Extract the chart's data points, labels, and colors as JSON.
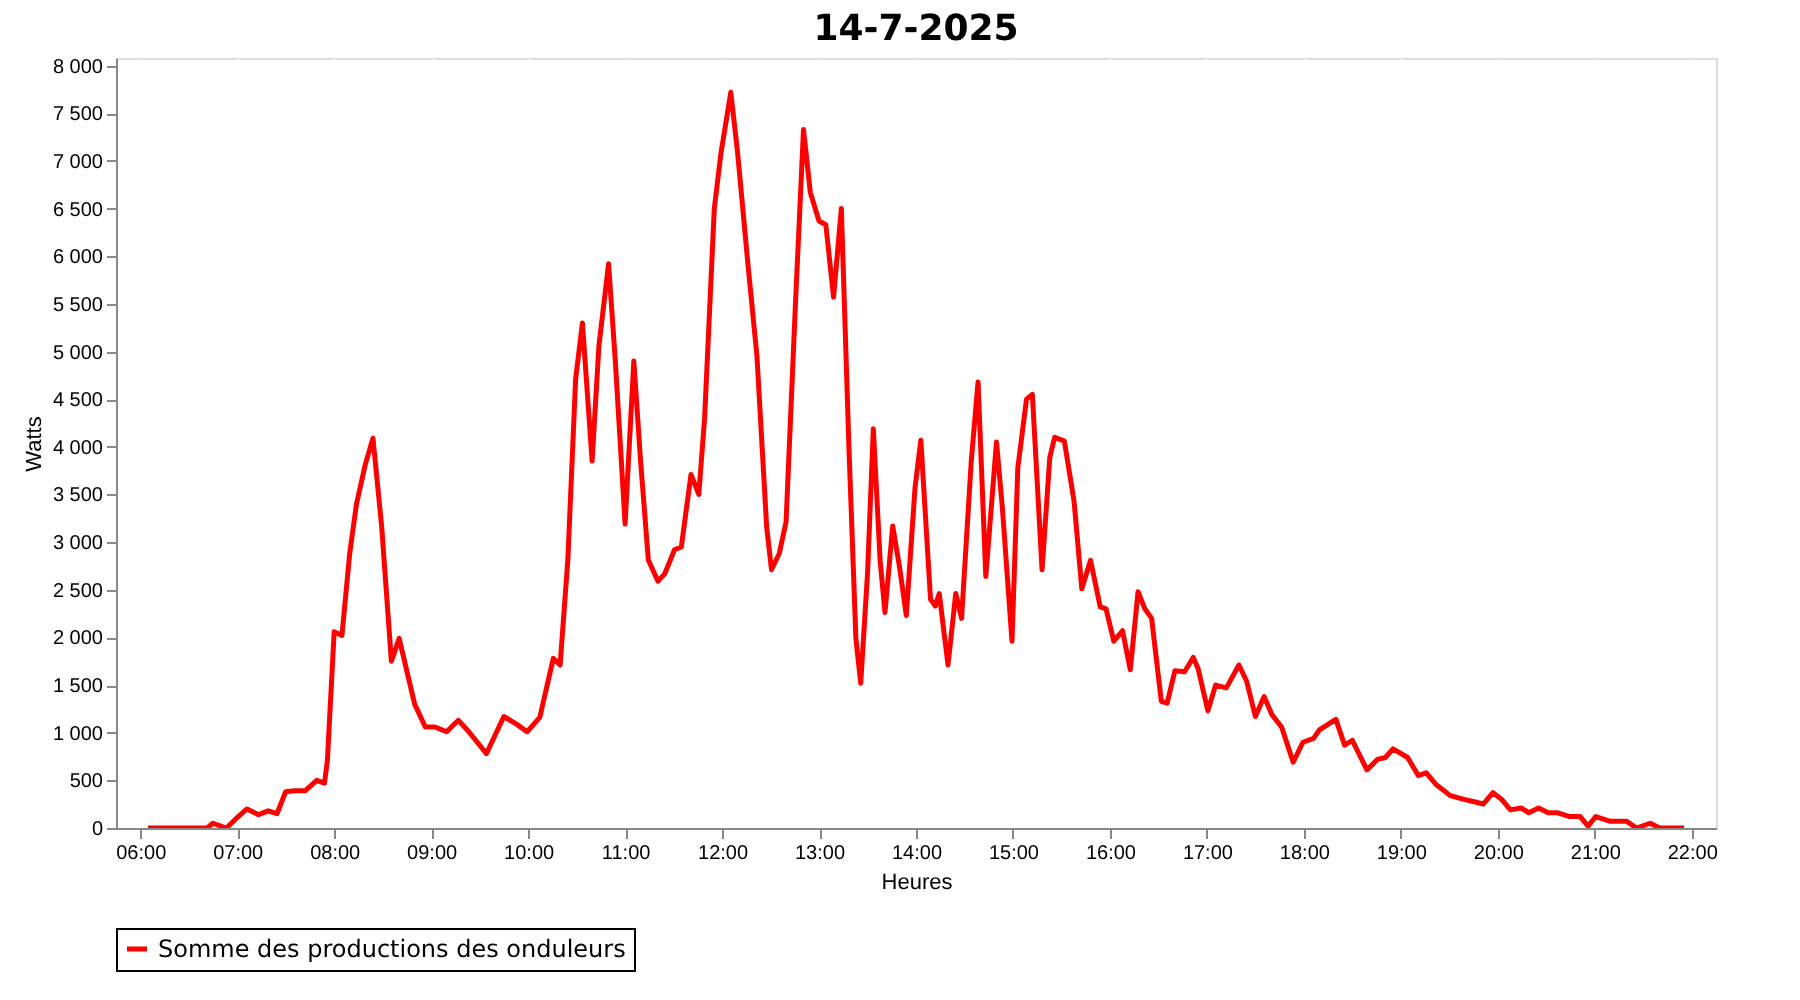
{
  "chart_data": {
    "type": "line",
    "title": "14-7-2025",
    "xlabel": "Heures",
    "ylabel": "Watts",
    "xlim": [
      5.75,
      22.25
    ],
    "xticks": [
      {
        "value": 6,
        "label": "06:00"
      },
      {
        "value": 7,
        "label": "07:00"
      },
      {
        "value": 8,
        "label": "08:00"
      },
      {
        "value": 9,
        "label": "09:00"
      },
      {
        "value": 10,
        "label": "10:00"
      },
      {
        "value": 11,
        "label": "11:00"
      },
      {
        "value": 12,
        "label": "12:00"
      },
      {
        "value": 13,
        "label": "13:00"
      },
      {
        "value": 14,
        "label": "14:00"
      },
      {
        "value": 15,
        "label": "15:00"
      },
      {
        "value": 16,
        "label": "16:00"
      },
      {
        "value": 17,
        "label": "17:00"
      },
      {
        "value": 18,
        "label": "18:00"
      },
      {
        "value": 19,
        "label": "19:00"
      },
      {
        "value": 20,
        "label": "20:00"
      },
      {
        "value": 21,
        "label": "21:00"
      },
      {
        "value": 22,
        "label": "22:00"
      }
    ],
    "ylim": [
      0,
      8080
    ],
    "yticks": [
      0,
      500,
      {
        "value": 1000,
        "label": "1 000"
      },
      {
        "value": 1500,
        "label": "1 500"
      },
      {
        "value": 2000,
        "label": "2 000"
      },
      {
        "value": 2500,
        "label": "2 500"
      },
      {
        "value": 3000,
        "label": "3 000"
      },
      {
        "value": 3500,
        "label": "3 500"
      },
      {
        "value": 4000,
        "label": "4 000"
      },
      {
        "value": 4500,
        "label": "4 500"
      },
      {
        "value": 5000,
        "label": "5 000"
      },
      {
        "value": 5500,
        "label": "5 500"
      },
      {
        "value": 6000,
        "label": "6 000"
      },
      {
        "value": 6500,
        "label": "6 500"
      },
      {
        "value": 7000,
        "label": "7 000"
      },
      {
        "value": 7500,
        "label": "7 500"
      },
      {
        "value": 8000,
        "label": "8 000"
      }
    ],
    "grid": true,
    "legend": "bottom",
    "marker": "none",
    "line_style": "solid",
    "series": [
      {
        "name": "Somme des productions des onduleurs",
        "color": "#ff0000",
        "x": [
          6.08,
          6.69,
          6.75,
          6.89,
          7.0,
          7.1,
          7.22,
          7.32,
          7.41,
          7.5,
          7.59,
          7.7,
          7.82,
          7.9,
          7.93,
          8.0,
          8.08,
          8.16,
          8.23,
          8.32,
          8.4,
          8.49,
          8.59,
          8.67,
          8.83,
          8.94,
          9.04,
          9.16,
          9.28,
          9.38,
          9.57,
          9.75,
          9.88,
          9.99,
          10.12,
          10.26,
          10.33,
          10.41,
          10.49,
          10.56,
          10.66,
          10.73,
          10.83,
          10.9,
          11.0,
          11.09,
          11.16,
          11.24,
          11.34,
          11.41,
          11.51,
          11.58,
          11.68,
          11.76,
          11.82,
          11.92,
          11.99,
          12.09,
          12.16,
          12.26,
          12.36,
          12.46,
          12.51,
          12.59,
          12.66,
          12.76,
          12.84,
          12.91,
          13.0,
          13.07,
          13.15,
          13.23,
          13.31,
          13.38,
          13.43,
          13.5,
          13.56,
          13.63,
          13.68,
          13.76,
          13.83,
          13.9,
          13.99,
          14.05,
          14.15,
          14.2,
          14.24,
          14.33,
          14.41,
          14.47,
          14.57,
          14.64,
          14.72,
          14.83,
          14.89,
          14.99,
          15.05,
          15.14,
          15.2,
          15.3,
          15.38,
          15.43,
          15.53,
          15.63,
          15.71,
          15.8,
          15.9,
          15.96,
          16.04,
          16.13,
          16.21,
          16.29,
          16.36,
          16.43,
          16.53,
          16.59,
          16.67,
          16.77,
          16.86,
          16.91,
          17.01,
          17.09,
          17.2,
          17.33,
          17.41,
          17.5,
          17.59,
          17.67,
          17.77,
          17.89,
          17.99,
          18.1,
          18.16,
          18.33,
          18.42,
          18.5,
          18.65,
          18.76,
          18.84,
          18.92,
          19.07,
          19.18,
          19.26,
          19.36,
          19.51,
          19.65,
          19.78,
          19.85,
          19.95,
          20.04,
          20.13,
          20.24,
          20.32,
          20.42,
          20.52,
          20.62,
          20.74,
          20.85,
          20.93,
          21.01,
          21.16,
          21.33,
          21.43,
          21.57,
          21.67,
          21.92
        ],
        "values": [
          0,
          0,
          50,
          0,
          110,
          200,
          140,
          180,
          150,
          380,
          390,
          390,
          500,
          470,
          710,
          2060,
          2020,
          2880,
          3400,
          3810,
          4090,
          3160,
          1750,
          1990,
          1300,
          1060,
          1060,
          1010,
          1130,
          1020,
          780,
          1170,
          1090,
          1010,
          1160,
          1780,
          1710,
          2820,
          4710,
          5300,
          3850,
          5060,
          5920,
          4890,
          3190,
          4900,
          3850,
          2810,
          2590,
          2670,
          2920,
          2950,
          3710,
          3500,
          4300,
          6500,
          7090,
          7720,
          7090,
          5990,
          4950,
          3160,
          2710,
          2880,
          3210,
          5570,
          7330,
          6670,
          6370,
          6330,
          5570,
          6500,
          3950,
          1990,
          1520,
          2670,
          4190,
          2810,
          2260,
          3170,
          2740,
          2230,
          3570,
          4070,
          2400,
          2330,
          2460,
          1710,
          2460,
          2200,
          3850,
          4680,
          2640,
          4050,
          3370,
          1960,
          3780,
          4500,
          4550,
          2710,
          3890,
          4100,
          4060,
          3430,
          2510,
          2810,
          2320,
          2300,
          1960,
          2070,
          1660,
          2480,
          2300,
          2200,
          1330,
          1310,
          1650,
          1640,
          1790,
          1670,
          1230,
          1500,
          1470,
          1710,
          1540,
          1170,
          1380,
          1190,
          1060,
          690,
          900,
          940,
          1030,
          1140,
          870,
          920,
          610,
          720,
          740,
          830,
          740,
          550,
          580,
          460,
          340,
          300,
          270,
          250,
          370,
          300,
          190,
          210,
          160,
          210,
          160,
          160,
          120,
          120,
          20,
          120,
          70,
          70,
          0,
          50,
          0,
          0
        ]
      }
    ]
  }
}
